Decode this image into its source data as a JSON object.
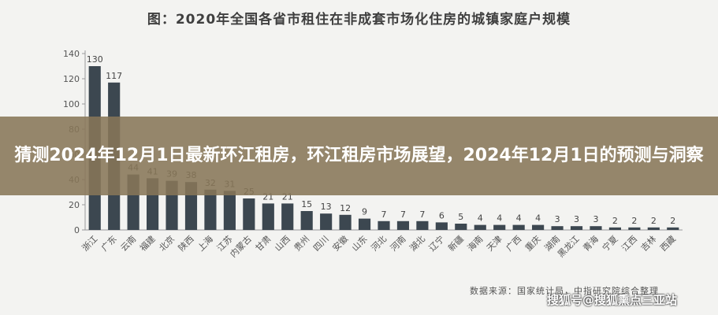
{
  "chart_data": {
    "type": "bar",
    "title": "图：2020年全国各省市租住在非成套市场化住房的城镇家庭户规模",
    "xlabel": "",
    "ylabel": "",
    "ylim": [
      0,
      140
    ],
    "yticks": [
      0,
      20,
      40,
      60,
      80,
      100,
      120,
      140
    ],
    "grid": false,
    "categories": [
      "浙江",
      "广东",
      "云南",
      "福建",
      "北京",
      "陕西",
      "上海",
      "江苏",
      "内蒙古",
      "甘肃",
      "山西",
      "贵州",
      "四川",
      "安徽",
      "山东",
      "河北",
      "河南",
      "湖北",
      "辽宁",
      "新疆",
      "海南",
      "天津",
      "广西",
      "重庆",
      "湖南",
      "黑龙江",
      "青海",
      "宁夏",
      "江西",
      "吉林",
      "西藏"
    ],
    "values": [
      130,
      117,
      44,
      41,
      39,
      38,
      32,
      31,
      25,
      21,
      21,
      15,
      13,
      12,
      9,
      7,
      7,
      7,
      6,
      5,
      4,
      4,
      4,
      4,
      3,
      3,
      3,
      2,
      2,
      2,
      2
    ],
    "bar_color": "#3c4750"
  },
  "banner": {
    "text": "猜测2024年12月1日最新环江租房，环江租房市场展望，2024年12月1日的预测与洞察"
  },
  "source_note": "数据来源：国家统计局，中指研究院综合整理",
  "watermark": "搜狐号@搜狐熏点三亚站"
}
